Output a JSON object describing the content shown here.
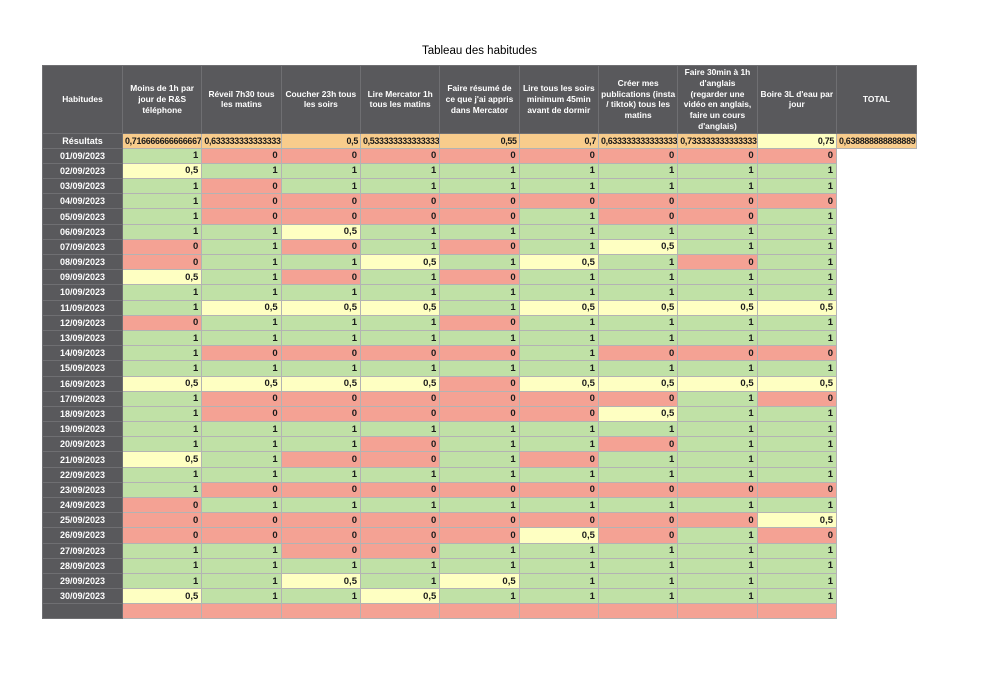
{
  "title": "Tableau des habitudes",
  "colors": {
    "header_bg": "#59595c",
    "header_text": "#ffffff",
    "green_done": "#c0e1a6",
    "red_missed": "#f4a294",
    "yellow_half": "#feffc2",
    "orange_result": "#f8cc8c",
    "grid": "#b3b3b3"
  },
  "table": {
    "corner_header": "Habitudes",
    "habit_headers": [
      "Moins de 1h par jour de R&S téléphone",
      "Réveil 7h30 tous les matins",
      "Coucher 23h tous les soirs",
      "Lire Mercator 1h tous les matins",
      "Faire résumé de ce que j'ai appris dans Mercator",
      "Lire tous les soirs minimum 45min avant de dormir",
      "Créer mes publications (insta / tiktok) tous les matins",
      "Faire 30min à 1h d'anglais (regarder une vidéo en anglais, faire un cours d'anglais)",
      "Boire 3L d'eau par jour"
    ],
    "total_header": "TOTAL",
    "results": {
      "label": "Résultats",
      "values": [
        {
          "text": "0,716666666666667",
          "tone": "o"
        },
        {
          "text": "0,633333333333333",
          "tone": "o"
        },
        {
          "text": "0,5",
          "tone": "o"
        },
        {
          "text": "0,533333333333333",
          "tone": "o"
        },
        {
          "text": "0,55",
          "tone": "o"
        },
        {
          "text": "0,7",
          "tone": "o"
        },
        {
          "text": "0,633333333333333",
          "tone": "o"
        },
        {
          "text": "0,733333333333333",
          "tone": "o"
        },
        {
          "text": "0,75",
          "tone": "y"
        }
      ],
      "total": {
        "text": "0,638888888888889",
        "tone": "o"
      }
    },
    "rows": [
      {
        "date": "01/09/2023",
        "values": [
          1,
          0,
          0,
          0,
          0,
          0,
          0,
          0,
          0
        ]
      },
      {
        "date": "02/09/2023",
        "values": [
          0.5,
          1,
          1,
          1,
          1,
          1,
          1,
          1,
          1
        ]
      },
      {
        "date": "03/09/2023",
        "values": [
          1,
          0,
          1,
          1,
          1,
          1,
          1,
          1,
          1
        ]
      },
      {
        "date": "04/09/2023",
        "values": [
          1,
          0,
          0,
          0,
          0,
          0,
          0,
          0,
          0
        ]
      },
      {
        "date": "05/09/2023",
        "values": [
          1,
          0,
          0,
          0,
          0,
          1,
          0,
          0,
          1
        ]
      },
      {
        "date": "06/09/2023",
        "values": [
          1,
          1,
          0.5,
          1,
          1,
          1,
          1,
          1,
          1
        ]
      },
      {
        "date": "07/09/2023",
        "values": [
          0,
          1,
          0,
          1,
          0,
          1,
          0.5,
          1,
          1
        ]
      },
      {
        "date": "08/09/2023",
        "values": [
          0,
          1,
          1,
          0.5,
          1,
          0.5,
          1,
          0,
          1
        ]
      },
      {
        "date": "09/09/2023",
        "values": [
          0.5,
          1,
          0,
          1,
          0,
          1,
          1,
          1,
          1
        ]
      },
      {
        "date": "10/09/2023",
        "values": [
          1,
          1,
          1,
          1,
          1,
          1,
          1,
          1,
          1
        ]
      },
      {
        "date": "11/09/2023",
        "values": [
          1,
          0.5,
          0.5,
          0.5,
          1,
          0.5,
          0.5,
          0.5,
          0.5
        ]
      },
      {
        "date": "12/09/2023",
        "values": [
          0,
          1,
          1,
          1,
          0,
          1,
          1,
          1,
          1
        ]
      },
      {
        "date": "13/09/2023",
        "values": [
          1,
          1,
          1,
          1,
          1,
          1,
          1,
          1,
          1
        ]
      },
      {
        "date": "14/09/2023",
        "values": [
          1,
          0,
          0,
          0,
          0,
          1,
          0,
          0,
          0
        ]
      },
      {
        "date": "15/09/2023",
        "values": [
          1,
          1,
          1,
          1,
          1,
          1,
          1,
          1,
          1
        ]
      },
      {
        "date": "16/09/2023",
        "values": [
          0.5,
          0.5,
          0.5,
          0.5,
          0,
          0.5,
          0.5,
          0.5,
          0.5
        ]
      },
      {
        "date": "17/09/2023",
        "values": [
          1,
          0,
          0,
          0,
          0,
          0,
          0,
          1,
          0
        ]
      },
      {
        "date": "18/09/2023",
        "values": [
          1,
          0,
          0,
          0,
          0,
          0,
          0.5,
          1,
          1
        ]
      },
      {
        "date": "19/09/2023",
        "values": [
          1,
          1,
          1,
          1,
          1,
          1,
          1,
          1,
          1
        ]
      },
      {
        "date": "20/09/2023",
        "values": [
          1,
          1,
          1,
          0,
          1,
          1,
          0,
          1,
          1
        ]
      },
      {
        "date": "21/09/2023",
        "values": [
          0.5,
          1,
          0,
          0,
          1,
          0,
          1,
          1,
          1
        ]
      },
      {
        "date": "22/09/2023",
        "values": [
          1,
          1,
          1,
          1,
          1,
          1,
          1,
          1,
          1
        ]
      },
      {
        "date": "23/09/2023",
        "values": [
          1,
          0,
          0,
          0,
          0,
          0,
          0,
          0,
          0
        ]
      },
      {
        "date": "24/09/2023",
        "values": [
          0,
          1,
          1,
          1,
          1,
          1,
          1,
          1,
          1
        ]
      },
      {
        "date": "25/09/2023",
        "values": [
          0,
          0,
          0,
          0,
          0,
          0,
          0,
          0,
          0.5
        ]
      },
      {
        "date": "26/09/2023",
        "values": [
          0,
          0,
          0,
          0,
          0,
          0.5,
          0,
          1,
          0
        ]
      },
      {
        "date": "27/09/2023",
        "values": [
          1,
          1,
          0,
          0,
          1,
          1,
          1,
          1,
          1
        ]
      },
      {
        "date": "28/09/2023",
        "values": [
          1,
          1,
          1,
          1,
          1,
          1,
          1,
          1,
          1
        ]
      },
      {
        "date": "29/09/2023",
        "values": [
          1,
          1,
          0.5,
          1,
          0.5,
          1,
          1,
          1,
          1
        ]
      },
      {
        "date": "30/09/2023",
        "values": [
          0.5,
          1,
          1,
          0.5,
          1,
          1,
          1,
          1,
          1
        ]
      }
    ],
    "footer": {
      "label": "",
      "note": "empty red row"
    }
  }
}
